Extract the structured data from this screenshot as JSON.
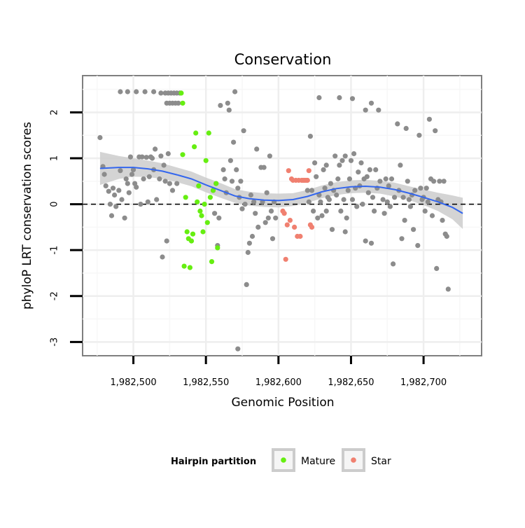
{
  "chart_data": {
    "type": "scatter",
    "title": "Conservation",
    "xlabel": "Genomic Position",
    "ylabel": "phyloP LRT conservation scores",
    "xlim": [
      1982465,
      1982740
    ],
    "ylim": [
      -3.3,
      2.8
    ],
    "x_ticks": [
      {
        "value": 1982500,
        "label": "1,982,500"
      },
      {
        "value": 1982550,
        "label": "1,982,550"
      },
      {
        "value": 1982600,
        "label": "1,982,600"
      },
      {
        "value": 1982650,
        "label": "1,982,650"
      },
      {
        "value": 1982700,
        "label": "1,982,700"
      }
    ],
    "y_ticks": [
      {
        "value": -3,
        "label": "-3"
      },
      {
        "value": -2,
        "label": "-2"
      },
      {
        "value": -1,
        "label": "-1"
      },
      {
        "value": 0,
        "label": "0"
      },
      {
        "value": 1,
        "label": "1"
      },
      {
        "value": 2,
        "label": "2"
      }
    ],
    "grid": true,
    "reference_line": {
      "y": 0,
      "style": "dashed",
      "color": "#000000"
    },
    "legend": {
      "title": "Hairpin partition",
      "position": "bottom",
      "entries": [
        {
          "label": "Mature",
          "color": "#66ee11"
        },
        {
          "label": "Star",
          "color": "#f08070"
        }
      ]
    },
    "colors": {
      "other": "#8c8c8c",
      "mature": "#66ee11",
      "star": "#f08070",
      "smooth": "#3366ee",
      "band": "#cccccc"
    },
    "series": [
      {
        "group": "other",
        "points": [
          [
            1982477,
            1.45
          ],
          [
            1982479,
            0.82
          ],
          [
            1982480,
            0.65
          ],
          [
            1982481,
            0.4
          ],
          [
            1982483,
            0.28
          ],
          [
            1982484,
            0.0
          ],
          [
            1982485,
            -0.25
          ],
          [
            1982486,
            0.35
          ],
          [
            1982487,
            0.2
          ],
          [
            1982488,
            -0.05
          ],
          [
            1982490,
            0.3
          ],
          [
            1982491,
            0.73
          ],
          [
            1982492,
            0.1
          ],
          [
            1982494,
            -0.3
          ],
          [
            1982495,
            0.55
          ],
          [
            1982496,
            0.45
          ],
          [
            1982497,
            0.25
          ],
          [
            1982498,
            1.03
          ],
          [
            1982499,
            0.65
          ],
          [
            1982500,
            0.75
          ],
          [
            1982501,
            0.45
          ],
          [
            1982502,
            0.37
          ],
          [
            1982504,
            1.03
          ],
          [
            1982505,
            0.0
          ],
          [
            1982506,
            1.03
          ],
          [
            1982507,
            0.55
          ],
          [
            1982509,
            1.02
          ],
          [
            1982510,
            0.05
          ],
          [
            1982511,
            0.6
          ],
          [
            1982512,
            1.03
          ],
          [
            1982513,
            1.0
          ],
          [
            1982514,
            0.75
          ],
          [
            1982515,
            1.2
          ],
          [
            1982516,
            0.1
          ],
          [
            1982518,
            0.55
          ],
          [
            1982519,
            1.05
          ],
          [
            1982520,
            -1.15
          ],
          [
            1982521,
            0.85
          ],
          [
            1982522,
            0.5
          ],
          [
            1982523,
            -0.8
          ],
          [
            1982524,
            1.1
          ],
          [
            1982525,
            0.45
          ],
          [
            1982527,
            0.3
          ],
          [
            1982530,
            0.45
          ],
          [
            1982491,
            2.45
          ],
          [
            1982496,
            2.45
          ],
          [
            1982502,
            2.45
          ],
          [
            1982508,
            2.45
          ],
          [
            1982514,
            2.45
          ],
          [
            1982519,
            2.42
          ],
          [
            1982522,
            2.42
          ],
          [
            1982524,
            2.42
          ],
          [
            1982526,
            2.42
          ],
          [
            1982528,
            2.42
          ],
          [
            1982530,
            2.42
          ],
          [
            1982532,
            2.42
          ],
          [
            1982523,
            2.2
          ],
          [
            1982525,
            2.2
          ],
          [
            1982527,
            2.2
          ],
          [
            1982529,
            2.2
          ],
          [
            1982531,
            2.2
          ],
          [
            1982555,
            0.3
          ],
          [
            1982556,
            -0.2
          ],
          [
            1982557,
            0.45
          ],
          [
            1982558,
            -0.9
          ],
          [
            1982559,
            -0.3
          ],
          [
            1982560,
            2.15
          ],
          [
            1982562,
            0.75
          ],
          [
            1982563,
            0.55
          ],
          [
            1982564,
            0.25
          ],
          [
            1982565,
            2.2
          ],
          [
            1982566,
            2.05
          ],
          [
            1982567,
            0.95
          ],
          [
            1982568,
            0.5
          ],
          [
            1982569,
            1.35
          ],
          [
            1982570,
            2.45
          ],
          [
            1982571,
            0.75
          ],
          [
            1982572,
            0.35
          ],
          [
            1982573,
            0.15
          ],
          [
            1982574,
            0.5
          ],
          [
            1982575,
            -0.1
          ],
          [
            1982576,
            1.6
          ],
          [
            1982577,
            0.0
          ],
          [
            1982578,
            -1.75
          ],
          [
            1982579,
            -1.05
          ],
          [
            1982580,
            -0.85
          ],
          [
            1982581,
            0.2
          ],
          [
            1982582,
            -0.7
          ],
          [
            1982583,
            0.05
          ],
          [
            1982584,
            -0.2
          ],
          [
            1982585,
            1.2
          ],
          [
            1982586,
            -0.5
          ],
          [
            1982588,
            0.8
          ],
          [
            1982589,
            0.05
          ],
          [
            1982590,
            0.8
          ],
          [
            1982591,
            -0.4
          ],
          [
            1982592,
            0.25
          ],
          [
            1982593,
            -0.3
          ],
          [
            1982594,
            1.05
          ],
          [
            1982595,
            -0.15
          ],
          [
            1982596,
            -0.75
          ],
          [
            1982597,
            0.05
          ],
          [
            1982598,
            -0.3
          ],
          [
            1982572,
            -3.15
          ],
          [
            1982620,
            0.3
          ],
          [
            1982621,
            0.05
          ],
          [
            1982622,
            1.48
          ],
          [
            1982623,
            0.3
          ],
          [
            1982624,
            -0.15
          ],
          [
            1982625,
            0.9
          ],
          [
            1982626,
            0.6
          ],
          [
            1982627,
            -0.3
          ],
          [
            1982628,
            0.2
          ],
          [
            1982629,
            0.05
          ],
          [
            1982630,
            -0.25
          ],
          [
            1982631,
            0.75
          ],
          [
            1982632,
            0.35
          ],
          [
            1982633,
            0.85
          ],
          [
            1982634,
            0.15
          ],
          [
            1982635,
            0.1
          ],
          [
            1982636,
            0.45
          ],
          [
            1982637,
            -0.55
          ],
          [
            1982638,
            0.3
          ],
          [
            1982639,
            1.05
          ],
          [
            1982640,
            0.2
          ],
          [
            1982641,
            0.55
          ],
          [
            1982642,
            0.85
          ],
          [
            1982643,
            -0.15
          ],
          [
            1982644,
            0.95
          ],
          [
            1982645,
            0.1
          ],
          [
            1982646,
            1.05
          ],
          [
            1982647,
            -0.3
          ],
          [
            1982648,
            0.3
          ],
          [
            1982649,
            0.55
          ],
          [
            1982650,
            0.95
          ],
          [
            1982651,
            0.1
          ],
          [
            1982652,
            1.1
          ],
          [
            1982653,
            0.35
          ],
          [
            1982654,
            -0.05
          ],
          [
            1982655,
            0.7
          ],
          [
            1982656,
            0.4
          ],
          [
            1982657,
            0.9
          ],
          [
            1982658,
            0.0
          ],
          [
            1982659,
            0.55
          ],
          [
            1982660,
            -0.8
          ],
          [
            1982661,
            0.6
          ],
          [
            1982662,
            0.25
          ],
          [
            1982663,
            0.75
          ],
          [
            1982664,
            2.2
          ],
          [
            1982665,
            0.15
          ],
          [
            1982666,
            -0.15
          ],
          [
            1982667,
            0.75
          ],
          [
            1982668,
            0.35
          ],
          [
            1982669,
            2.05
          ],
          [
            1982670,
            0.5
          ],
          [
            1982672,
            0.1
          ],
          [
            1982673,
            -0.2
          ],
          [
            1982674,
            0.55
          ],
          [
            1982675,
            0.05
          ],
          [
            1982676,
            0.4
          ],
          [
            1982677,
            -0.05
          ],
          [
            1982678,
            0.55
          ],
          [
            1982679,
            -1.3
          ],
          [
            1982680,
            0.15
          ],
          [
            1982682,
            1.75
          ],
          [
            1982683,
            0.3
          ],
          [
            1982684,
            0.85
          ],
          [
            1982685,
            -0.75
          ],
          [
            1982686,
            0.15
          ],
          [
            1982687,
            -0.35
          ],
          [
            1982688,
            1.65
          ],
          [
            1982689,
            0.5
          ],
          [
            1982690,
            0.1
          ],
          [
            1982691,
            -0.05
          ],
          [
            1982692,
            0.2
          ],
          [
            1982693,
            -0.55
          ],
          [
            1982694,
            0.3
          ],
          [
            1982696,
            -0.9
          ],
          [
            1982697,
            1.5
          ],
          [
            1982698,
            0.35
          ],
          [
            1982699,
            0.1
          ],
          [
            1982700,
            0.15
          ],
          [
            1982701,
            -0.15
          ],
          [
            1982702,
            0.35
          ],
          [
            1982703,
            0.05
          ],
          [
            1982704,
            1.85
          ],
          [
            1982705,
            0.55
          ],
          [
            1982706,
            -0.25
          ],
          [
            1982707,
            0.5
          ],
          [
            1982708,
            1.6
          ],
          [
            1982709,
            -1.4
          ],
          [
            1982710,
            0.1
          ],
          [
            1982711,
            0.5
          ],
          [
            1982712,
            0.05
          ],
          [
            1982713,
            -0.35
          ],
          [
            1982714,
            0.5
          ],
          [
            1982715,
            -0.65
          ],
          [
            1982716,
            -0.7
          ],
          [
            1982717,
            -1.85
          ],
          [
            1982628,
            2.32
          ],
          [
            1982642,
            2.32
          ],
          [
            1982651,
            2.3
          ],
          [
            1982660,
            2.05
          ],
          [
            1982664,
            -0.85
          ],
          [
            1982633,
            -0.15
          ],
          [
            1982646,
            -0.6
          ]
        ]
      },
      {
        "group": "mature",
        "name": "Mature",
        "points": [
          [
            1982533,
            2.42
          ],
          [
            1982534,
            2.2
          ],
          [
            1982534,
            1.08
          ],
          [
            1982535,
            -1.35
          ],
          [
            1982536,
            0.15
          ],
          [
            1982537,
            -0.6
          ],
          [
            1982538,
            -0.75
          ],
          [
            1982539,
            -1.38
          ],
          [
            1982540,
            -0.8
          ],
          [
            1982541,
            -0.65
          ],
          [
            1982542,
            1.25
          ],
          [
            1982543,
            1.55
          ],
          [
            1982544,
            0.05
          ],
          [
            1982545,
            0.4
          ],
          [
            1982546,
            -0.15
          ],
          [
            1982547,
            -0.25
          ],
          [
            1982548,
            -0.6
          ],
          [
            1982549,
            0.0
          ],
          [
            1982550,
            0.95
          ],
          [
            1982551,
            -0.4
          ],
          [
            1982552,
            1.55
          ],
          [
            1982553,
            0.15
          ],
          [
            1982554,
            -1.25
          ],
          [
            1982555,
            0.3
          ],
          [
            1982557,
            0.45
          ],
          [
            1982558,
            -0.95
          ]
        ]
      },
      {
        "group": "star",
        "name": "Star",
        "points": [
          [
            1982603,
            -0.15
          ],
          [
            1982604,
            -0.2
          ],
          [
            1982605,
            -1.2
          ],
          [
            1982606,
            -0.45
          ],
          [
            1982607,
            0.73
          ],
          [
            1982608,
            -0.35
          ],
          [
            1982609,
            0.55
          ],
          [
            1982610,
            0.52
          ],
          [
            1982611,
            -0.5
          ],
          [
            1982612,
            0.52
          ],
          [
            1982613,
            -0.7
          ],
          [
            1982614,
            0.52
          ],
          [
            1982615,
            -0.7
          ],
          [
            1982616,
            0.52
          ],
          [
            1982617,
            0.52
          ],
          [
            1982618,
            0.52
          ],
          [
            1982619,
            0.52
          ],
          [
            1982620,
            0.52
          ],
          [
            1982621,
            0.73
          ],
          [
            1982622,
            -0.45
          ],
          [
            1982623,
            -0.5
          ]
        ]
      }
    ],
    "smooth": {
      "type": "loess",
      "x": [
        1982477,
        1982490,
        1982500,
        1982510,
        1982520,
        1982530,
        1982540,
        1982550,
        1982560,
        1982570,
        1982580,
        1982590,
        1982600,
        1982610,
        1982620,
        1982630,
        1982640,
        1982650,
        1982660,
        1982670,
        1982680,
        1982690,
        1982700,
        1982710,
        1982720,
        1982727
      ],
      "y": [
        0.78,
        0.8,
        0.8,
        0.77,
        0.72,
        0.64,
        0.55,
        0.42,
        0.3,
        0.18,
        0.12,
        0.09,
        0.08,
        0.1,
        0.17,
        0.27,
        0.34,
        0.38,
        0.39,
        0.37,
        0.32,
        0.24,
        0.15,
        0.05,
        -0.07,
        -0.2
      ],
      "ci": [
        0.36,
        0.25,
        0.2,
        0.18,
        0.17,
        0.16,
        0.16,
        0.16,
        0.16,
        0.15,
        0.15,
        0.15,
        0.15,
        0.14,
        0.14,
        0.14,
        0.14,
        0.14,
        0.14,
        0.14,
        0.15,
        0.15,
        0.17,
        0.2,
        0.26,
        0.34
      ]
    }
  }
}
